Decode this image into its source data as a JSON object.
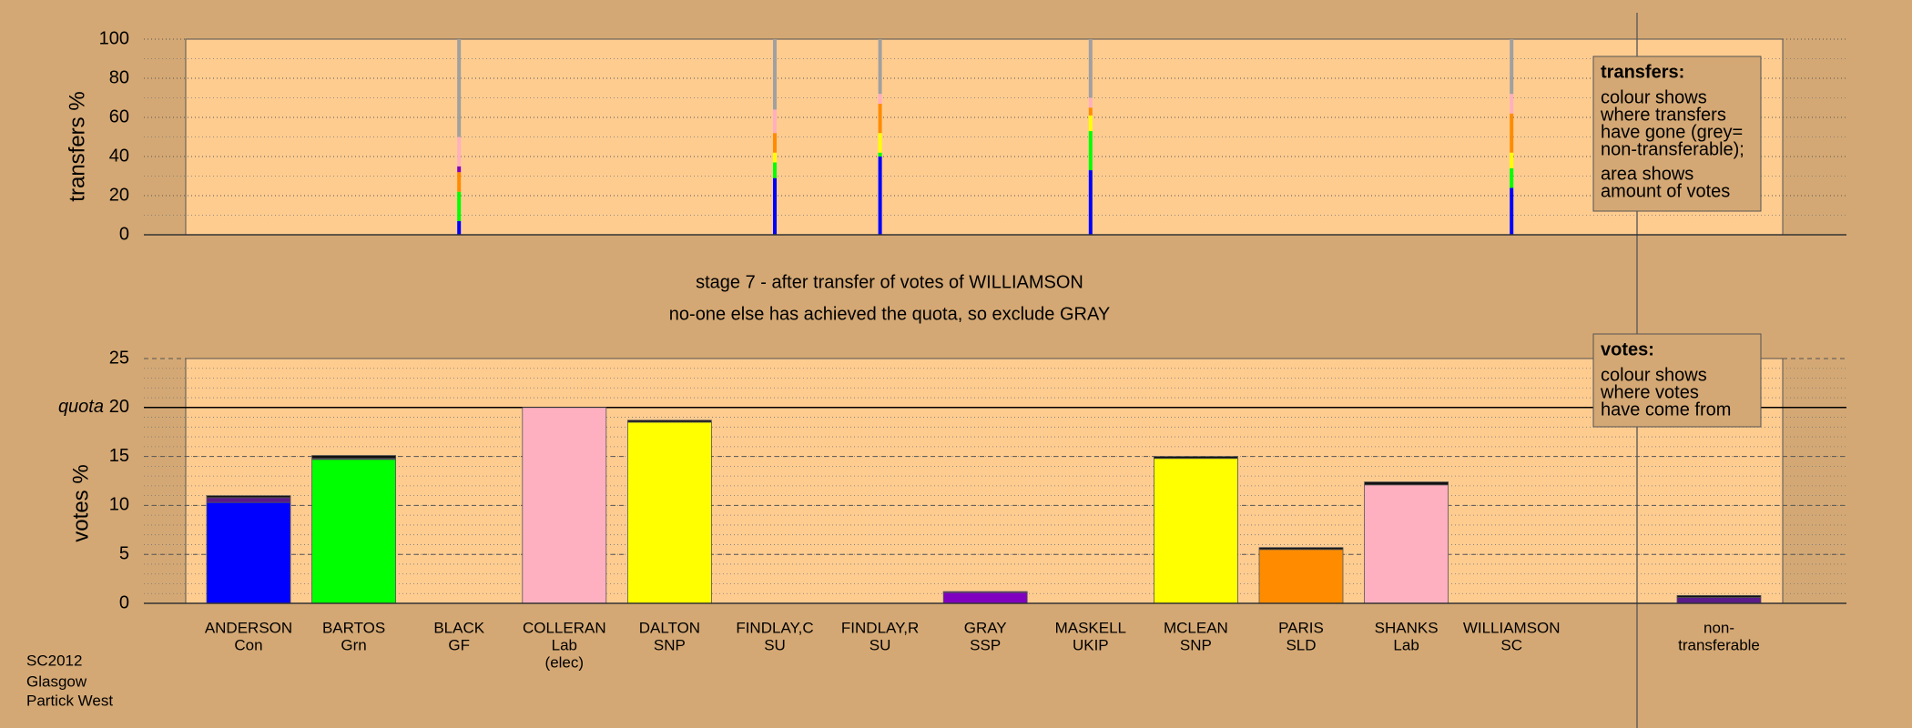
{
  "chart_data": [
    {
      "type": "bar",
      "stacked": true,
      "ylabel": "transfers %",
      "ylim": [
        0,
        100
      ],
      "yticks": [
        0,
        20,
        40,
        60,
        80,
        100
      ],
      "minor_step": 10,
      "grid": true,
      "annotation": {
        "title": "transfers:",
        "paragraphs": [
          [
            "colour shows",
            "where transfers",
            "have gone (grey=",
            "non-transferable);"
          ],
          [
            "area shows",
            "amount of votes"
          ]
        ]
      },
      "series": [
        {
          "color": "#0000ff",
          "values": [
            0,
            0,
            7,
            0,
            0,
            29,
            40,
            0,
            33,
            0,
            0,
            0,
            24
          ]
        },
        {
          "color": "#00ff00",
          "values": [
            0,
            0,
            15,
            0,
            0,
            8,
            2,
            0,
            20,
            0,
            0,
            0,
            10
          ]
        },
        {
          "color": "#ffff00",
          "values": [
            0,
            0,
            0,
            0,
            0,
            5,
            10,
            0,
            8,
            0,
            0,
            0,
            8
          ]
        },
        {
          "color": "#ff8c00",
          "values": [
            0,
            0,
            10,
            0,
            0,
            10,
            15,
            0,
            4,
            0,
            0,
            0,
            20
          ]
        },
        {
          "color": "#8000c0",
          "values": [
            0,
            0,
            3,
            0,
            0,
            0,
            0,
            0,
            0,
            0,
            0,
            0,
            0
          ]
        },
        {
          "color": "#ffb0c0",
          "values": [
            0,
            0,
            15,
            0,
            0,
            12,
            5,
            0,
            5,
            0,
            0,
            0,
            10
          ]
        },
        {
          "color": "#a0a0a0",
          "values": [
            0,
            0,
            50,
            0,
            0,
            36,
            28,
            0,
            30,
            0,
            0,
            0,
            28
          ]
        }
      ]
    },
    {
      "type": "bar",
      "stacked": true,
      "title": "stage 7 - after transfer of votes of WILLIAMSON",
      "subtitle": "no-one else has achieved the quota, so exclude GRAY",
      "ylabel": "votes %",
      "ylim": [
        0,
        25
      ],
      "yticks": [
        0,
        5,
        10,
        15,
        20,
        25
      ],
      "minor_step": 1,
      "grid": true,
      "quota": {
        "value": 20,
        "label": "quota"
      },
      "annotation": {
        "title": "votes:",
        "paragraphs": [
          [
            "colour shows",
            "where votes",
            "have come from"
          ]
        ]
      },
      "categories": [
        [
          "ANDERSON",
          "Con"
        ],
        [
          "BARTOS",
          "Grn"
        ],
        [
          "BLACK",
          "GF"
        ],
        [
          "COLLERAN",
          "Lab",
          "(elec)"
        ],
        [
          "DALTON",
          "SNP"
        ],
        [
          "FINDLAY,C",
          "SU"
        ],
        [
          "FINDLAY,R",
          "SU"
        ],
        [
          "GRAY",
          "SSP"
        ],
        [
          "MASKELL",
          "UKIP"
        ],
        [
          "MCLEAN",
          "SNP"
        ],
        [
          "PARIS",
          "SLD"
        ],
        [
          "SHANKS",
          "Lab"
        ],
        [
          "WILLIAMSON",
          "SC"
        ],
        [
          "non-",
          "transferable"
        ]
      ],
      "series": [
        {
          "colors": [
            "#0000ff",
            "#00ff00",
            "#228b22",
            "#ffb0c0",
            "#ffff00",
            "#888888",
            "#888888",
            "#8000c0",
            "#800080",
            "#ffff00",
            "#ff8c00",
            "#ffb0c0",
            "#888888",
            "#888888"
          ],
          "values": [
            10.3,
            14.7,
            0,
            20,
            18.5,
            0,
            0,
            1.1,
            0,
            14.8,
            5.5,
            12.1,
            0,
            0
          ]
        },
        {
          "color": "#5a1a8a",
          "values": [
            0.5,
            0.1,
            0,
            0,
            0,
            0,
            0,
            0.1,
            0,
            0,
            0,
            0,
            0,
            0.6
          ]
        },
        {
          "color": "#111111",
          "values": [
            0.2,
            0.3,
            0,
            0,
            0.2,
            0,
            0,
            0,
            0,
            0.2,
            0.2,
            0.3,
            0,
            0.2
          ]
        }
      ]
    }
  ],
  "footer": [
    "SC2012",
    "Glasgow",
    "Partick West"
  ]
}
